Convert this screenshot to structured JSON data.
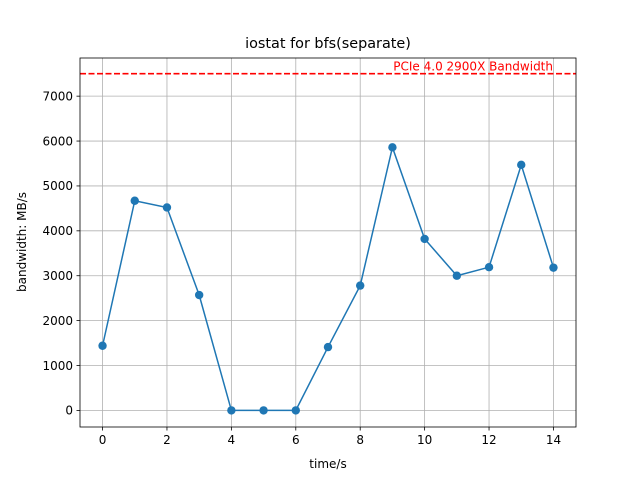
{
  "chart_data": {
    "type": "line",
    "title": "iostat for bfs(separate)",
    "xlabel": "time/s",
    "ylabel": "bandwidth: MB/s",
    "xlim": [
      -0.7,
      14.7
    ],
    "ylim": [
      -370,
      7850
    ],
    "xticks": [
      0,
      2,
      4,
      6,
      8,
      10,
      12,
      14
    ],
    "yticks": [
      0,
      1000,
      2000,
      3000,
      4000,
      5000,
      6000,
      7000
    ],
    "grid": true,
    "x": [
      0,
      1,
      2,
      3,
      4,
      5,
      6,
      7,
      8,
      9,
      10,
      11,
      12,
      13,
      14
    ],
    "series": [
      {
        "values": [
          1440,
          4670,
          4520,
          2570,
          0,
          0,
          0,
          1410,
          2780,
          5860,
          3820,
          3000,
          3190,
          5470,
          3180
        ],
        "color": "#1f77b4",
        "marker": "circle"
      }
    ],
    "reference_line": {
      "y": 7500,
      "label": "PCIe 4.0 2900X Bandwidth",
      "color": "#ff0000",
      "style": "dashed"
    }
  }
}
